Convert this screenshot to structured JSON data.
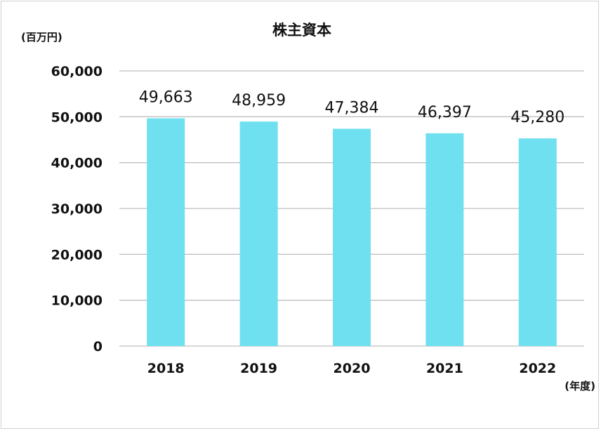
{
  "chart_data": {
    "type": "bar",
    "title": "株主資本",
    "y_unit": "(百万円)",
    "x_unit": "(年度)",
    "categories": [
      "2018",
      "2019",
      "2020",
      "2021",
      "2022"
    ],
    "values": [
      49663,
      48959,
      47384,
      46397,
      45280
    ],
    "data_labels": [
      "49,663",
      "48,959",
      "47,384",
      "46,397",
      "45,280"
    ],
    "ylim": [
      0,
      60000
    ],
    "yticks": [
      0,
      10000,
      20000,
      30000,
      40000,
      50000,
      60000
    ],
    "ytick_labels": [
      "0",
      "10,000",
      "20,000",
      "30,000",
      "40,000",
      "50,000",
      "60,000"
    ],
    "grid": true,
    "legend": "none",
    "bar_color": "#6FE0F0"
  }
}
